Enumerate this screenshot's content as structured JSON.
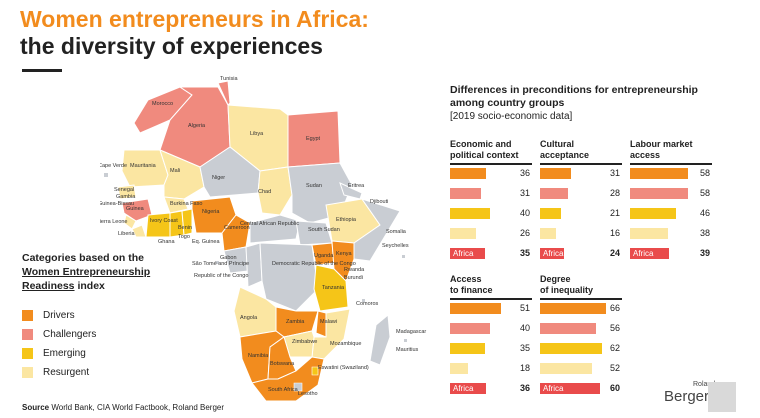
{
  "header": {
    "title_line1": "Women entrepreneurs in Africa:",
    "title_line2": "the diversity of experiences"
  },
  "colors": {
    "drivers": "#F28C1E",
    "challengers": "#F08A7E",
    "emerging": "#F5C518",
    "resurgent": "#FBE6A2",
    "africa": "#E94B4B",
    "grey": "#C9CDD3"
  },
  "legend": {
    "title_line1": "Categories based on the",
    "title_line2": "Women Entrepreneurship",
    "title_line3a": "Readiness",
    "title_line3b": " index",
    "items": [
      "Drivers",
      "Challengers",
      "Emerging",
      "Resurgent"
    ]
  },
  "panel": {
    "title_line1": "Differences in preconditions for entrepreneurship",
    "title_line2": "among country groups",
    "subtitle": "[2019 socio-economic data]"
  },
  "chart_data": {
    "type": "bar",
    "series_labels": [
      "Drivers",
      "Challengers",
      "Emerging",
      "Resurgent",
      "Africa"
    ],
    "groups": [
      {
        "title_line1": "Economic and",
        "title_line2": "political context",
        "values": [
          36,
          31,
          40,
          26
        ],
        "africa_label": "Africa",
        "africa": 35
      },
      {
        "title_line1": "Cultural",
        "title_line2": "acceptance",
        "values": [
          31,
          28,
          21,
          16
        ],
        "africa_label": "Africa",
        "africa": 24
      },
      {
        "title_line1": "Labour market",
        "title_line2": "access",
        "values": [
          58,
          58,
          46,
          38
        ],
        "africa_label": "Africa",
        "africa": 39
      },
      {
        "title_line1": "Access",
        "title_line2": "to finance",
        "values": [
          51,
          40,
          35,
          18
        ],
        "africa_label": "Africa",
        "africa": 36
      },
      {
        "title_line1": "Degree",
        "title_line2": "of inequality",
        "values": [
          66,
          56,
          62,
          52
        ],
        "africa_label": "Africa",
        "africa": 60
      }
    ]
  },
  "map": {
    "labels": [
      "Tunisia",
      "Morocco",
      "Algeria",
      "Libya",
      "Egypt",
      "Cape Verde",
      "Mauritania",
      "Mali",
      "Niger",
      "Chad",
      "Sudan",
      "Eritrea",
      "Djibouti",
      "Senegal",
      "Gambia",
      "Guinea-Bissau",
      "Guinea",
      "Sierra Leone",
      "Liberia",
      "Burkina Faso",
      "Ivory Coast",
      "Ghana",
      "Togo",
      "Benin",
      "Nigeria",
      "Cameroon",
      "Eq. Guinea",
      "Central African Republic",
      "South Sudan",
      "Ethiopia",
      "Somalia",
      "Gabon",
      "São Tomé and Príncipe",
      "Republic of the Congo",
      "Democratic Republic of the Congo",
      "Uganda",
      "Kenya",
      "Rwanda",
      "Burundi",
      "Seychelles",
      "Tanzania",
      "Angola",
      "Zambia",
      "Malawi",
      "Comoros",
      "Mozambique",
      "Madagascar",
      "Mauritius",
      "Zimbabwe",
      "Namibia",
      "Botswana",
      "Eswatini (Swaziland)",
      "Lesotho",
      "South Africa"
    ]
  },
  "footer": {
    "source_label": "Source",
    "source_text": " World Bank, CIA World Factbook, Roland Berger",
    "logo_small": "Roland",
    "logo_main": "Berger"
  }
}
